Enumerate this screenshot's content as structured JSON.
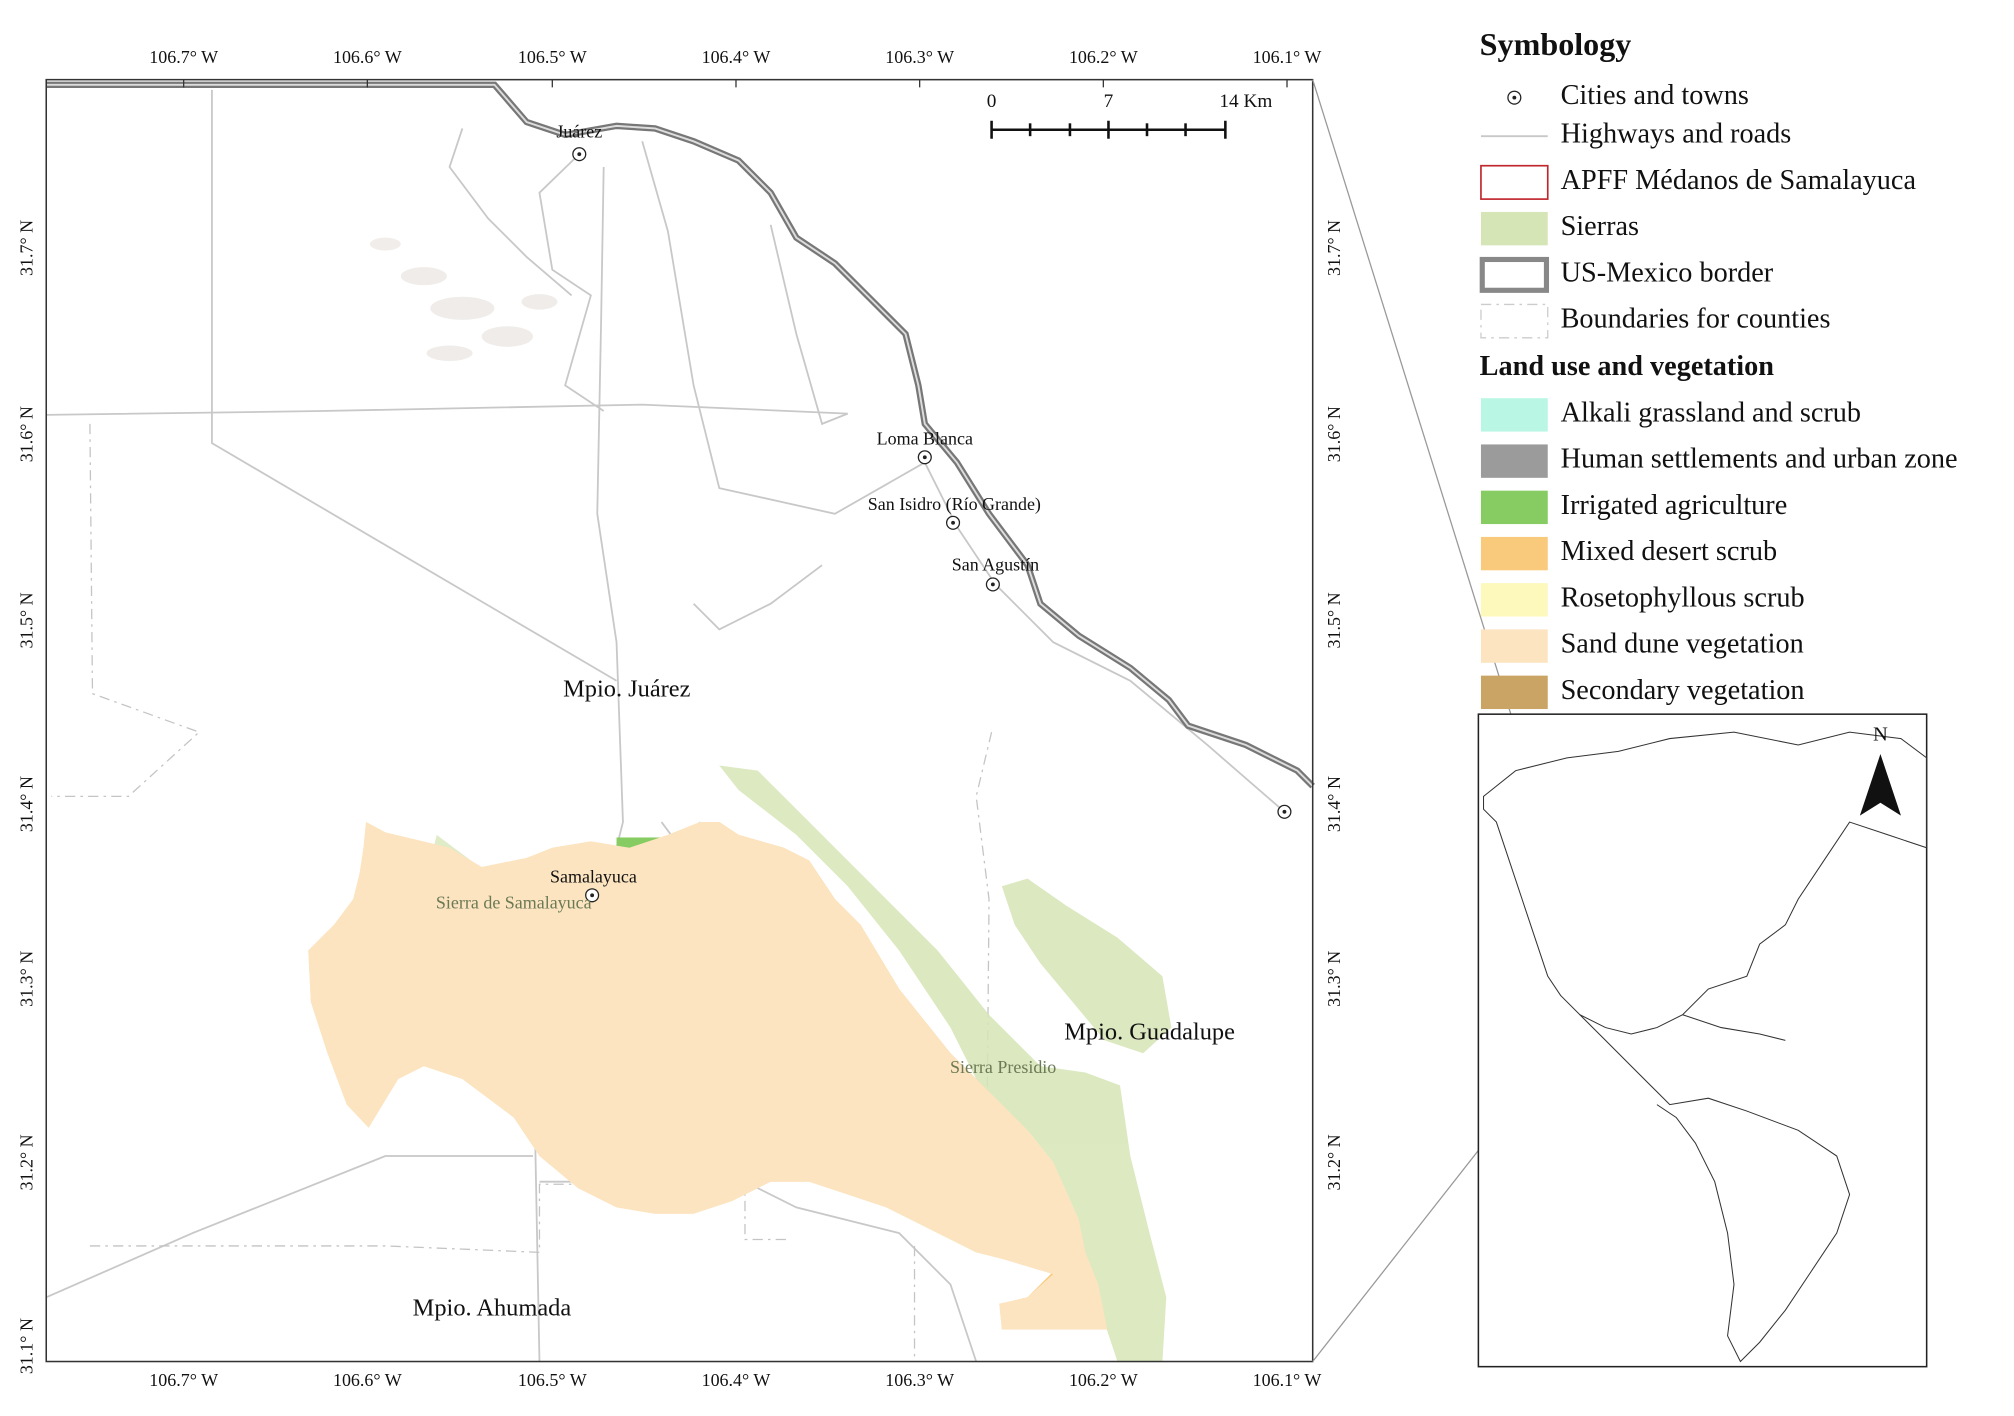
{
  "map": {
    "longitude_labels": [
      "106.7° W",
      "106.6° W",
      "106.5° W",
      "106.4° W",
      "106.3° W",
      "106.2° W",
      "106.1° W"
    ],
    "latitude_labels": [
      "31.7° N",
      "31.6° N",
      "31.5° N",
      "31.4° N",
      "31.3° N",
      "31.2° N",
      "31.1° N"
    ],
    "scale_bar": [
      "0",
      "7",
      "14 Km"
    ],
    "places": [
      "Juárez",
      "Loma Blanca",
      "San Isidro (Río Grande)",
      "San Agustín",
      "Samalayuca"
    ],
    "municipalities": [
      "Mpio. Juárez",
      "Mpio. Guadalupe",
      "Mpio. Ahumada"
    ],
    "sierras": [
      "Sierra de Samalayuca",
      "Sierra Presidio"
    ]
  },
  "legend": {
    "title": "Symbology",
    "symbols": [
      {
        "label": "Cities and towns"
      },
      {
        "label": "Highways and roads"
      },
      {
        "label": "APFF Médanos de Samalayuca",
        "color": "#c0272d"
      },
      {
        "label": "Sierras",
        "color": "#d6e5b6"
      },
      {
        "label": "US-Mexico border",
        "color": "#888888"
      },
      {
        "label": "Boundaries for counties",
        "color": "#cccccc"
      }
    ],
    "section_title": "Land use and vegetation",
    "land_use": [
      {
        "label": "Alkali grassland and scrub",
        "color": "#b9f6e4"
      },
      {
        "label": "Human settlements and urban zone",
        "color": "#9b9b9b"
      },
      {
        "label": "Irrigated agriculture",
        "color": "#86cc63"
      },
      {
        "label": "Mixed desert scrub",
        "color": "#f9c97c"
      },
      {
        "label": "Rosetophyllous scrub",
        "color": "#fdf8bb"
      },
      {
        "label": "Sand dune vegetation",
        "color": "#fce4c0"
      },
      {
        "label": "Secondary vegetation",
        "color": "#c9a465"
      }
    ]
  },
  "inset": {
    "north": "N"
  }
}
